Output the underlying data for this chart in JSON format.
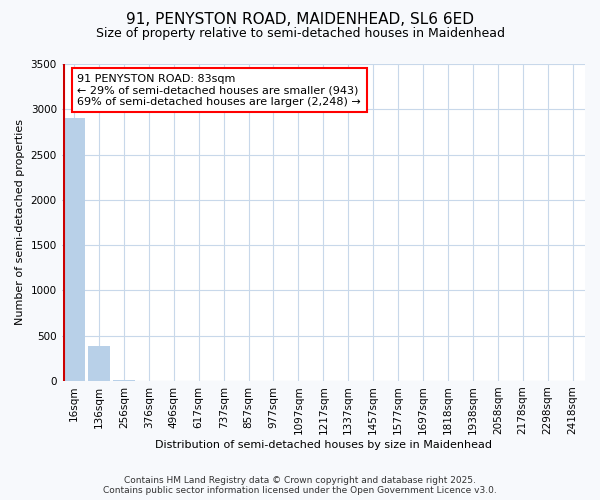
{
  "title": "91, PENYSTON ROAD, MAIDENHEAD, SL6 6ED",
  "subtitle": "Size of property relative to semi-detached houses in Maidenhead",
  "xlabel": "Distribution of semi-detached houses by size in Maidenhead",
  "ylabel": "Number of semi-detached properties",
  "bin_labels": [
    "16sqm",
    "136sqm",
    "256sqm",
    "376sqm",
    "496sqm",
    "617sqm",
    "737sqm",
    "857sqm",
    "977sqm",
    "1097sqm",
    "1217sqm",
    "1337sqm",
    "1457sqm",
    "1577sqm",
    "1697sqm",
    "1818sqm",
    "1938sqm",
    "2058sqm",
    "2178sqm",
    "2298sqm",
    "2418sqm"
  ],
  "bar_heights": [
    2900,
    380,
    5,
    0,
    0,
    0,
    0,
    0,
    0,
    0,
    0,
    0,
    0,
    0,
    0,
    0,
    0,
    0,
    0,
    0,
    0
  ],
  "bar_color": "#b8d0e8",
  "property_line_color": "#cc0000",
  "property_line_x": 0,
  "ylim": [
    0,
    3500
  ],
  "yticks": [
    0,
    500,
    1000,
    1500,
    2000,
    2500,
    3000,
    3500
  ],
  "annotation_text": "91 PENYSTON ROAD: 83sqm\n← 29% of semi-detached houses are smaller (943)\n69% of semi-detached houses are larger (2,248) →",
  "footer_line1": "Contains HM Land Registry data © Crown copyright and database right 2025.",
  "footer_line2": "Contains public sector information licensed under the Open Government Licence v3.0.",
  "fig_bg_color": "#f7f9fc",
  "plot_bg_color": "#ffffff",
  "grid_color": "#c8d8ea",
  "title_fontsize": 11,
  "subtitle_fontsize": 9,
  "ylabel_fontsize": 8,
  "xlabel_fontsize": 8,
  "tick_fontsize": 7.5,
  "annotation_fontsize": 8,
  "footer_fontsize": 6.5
}
